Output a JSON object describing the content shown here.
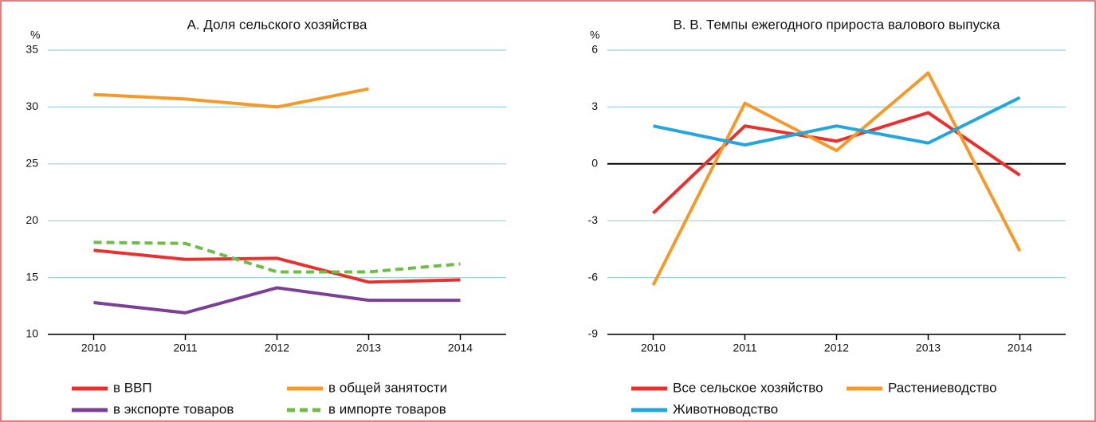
{
  "chart_data": [
    {
      "type": "line",
      "title": "А. Доля сельского хозяйства",
      "y_label": "%",
      "categories": [
        "2010",
        "2011",
        "2012",
        "2013",
        "2014"
      ],
      "ylim": [
        10,
        35
      ],
      "yticks": [
        10,
        15,
        20,
        25,
        30,
        35
      ],
      "grid": true,
      "zero_line": false,
      "series": [
        {
          "name": "в ВВП",
          "color": "#e8312f",
          "dashed": false,
          "values": [
            17.4,
            16.6,
            16.7,
            14.6,
            14.8
          ]
        },
        {
          "name": "в общей занятости",
          "color": "#f39a2b",
          "dashed": false,
          "values": [
            31.1,
            30.7,
            30.0,
            31.6,
            null
          ]
        },
        {
          "name": "в экспорте товаров",
          "color": "#7b3f96",
          "dashed": false,
          "values": [
            12.8,
            11.9,
            14.1,
            13.0,
            13.0
          ]
        },
        {
          "name": "в импорте товаров",
          "color": "#6cbe45",
          "dashed": true,
          "values": [
            18.1,
            18.0,
            15.5,
            15.5,
            16.2
          ]
        }
      ]
    },
    {
      "type": "line",
      "title": "В. В. Темпы ежегодного прироста валового выпуска",
      "y_label": "%",
      "categories": [
        "2010",
        "2011",
        "2012",
        "2013",
        "2014"
      ],
      "ylim": [
        -9,
        6
      ],
      "yticks": [
        -9,
        -6,
        -3,
        0,
        3,
        6
      ],
      "grid": true,
      "zero_line": true,
      "series": [
        {
          "name": "Все сельское хозяйство",
          "color": "#e8312f",
          "dashed": false,
          "values": [
            -2.6,
            2.0,
            1.2,
            2.7,
            -0.6
          ]
        },
        {
          "name": "Растениеводство",
          "color": "#f39a2b",
          "dashed": false,
          "values": [
            -6.4,
            3.2,
            0.7,
            4.8,
            -4.6
          ]
        },
        {
          "name": "Животноводство",
          "color": "#23a6dc",
          "dashed": false,
          "values": [
            2.0,
            1.0,
            2.0,
            1.1,
            3.5
          ]
        }
      ]
    }
  ]
}
